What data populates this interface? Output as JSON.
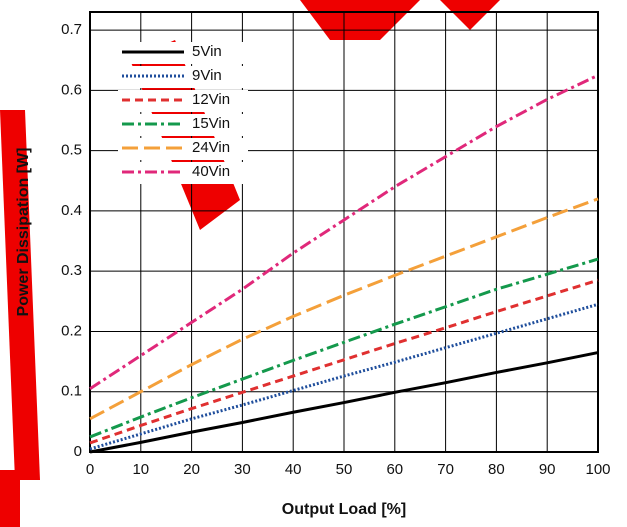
{
  "chart_data": {
    "type": "line",
    "xlabel": "Output Load [%]",
    "ylabel": "Power Dissipation [W]",
    "x": [
      0,
      10,
      20,
      30,
      40,
      50,
      60,
      70,
      80,
      90,
      100
    ],
    "series": [
      {
        "name": "5Vin",
        "color": "#000000",
        "dash": "solid",
        "values": [
          0,
          0.016,
          0.033,
          0.049,
          0.066,
          0.082,
          0.099,
          0.115,
          0.132,
          0.148,
          0.165
        ]
      },
      {
        "name": "9Vin",
        "color": "#1f4e9c",
        "dash": "dotted",
        "values": [
          0.005,
          0.03,
          0.055,
          0.078,
          0.102,
          0.126,
          0.149,
          0.173,
          0.197,
          0.221,
          0.245
        ]
      },
      {
        "name": "12Vin",
        "color": "#e03030",
        "dash": "dashed",
        "values": [
          0.015,
          0.044,
          0.072,
          0.099,
          0.126,
          0.153,
          0.18,
          0.206,
          0.233,
          0.259,
          0.285
        ]
      },
      {
        "name": "15Vin",
        "color": "#14994c",
        "dash": "dashdot",
        "values": [
          0.025,
          0.058,
          0.09,
          0.121,
          0.152,
          0.182,
          0.212,
          0.241,
          0.27,
          0.295,
          0.32
        ]
      },
      {
        "name": "24Vin",
        "color": "#f4a03a",
        "dash": "longdash",
        "values": [
          0.055,
          0.1,
          0.145,
          0.187,
          0.225,
          0.26,
          0.293,
          0.325,
          0.357,
          0.389,
          0.42
        ]
      },
      {
        "name": "40Vin",
        "color": "#e0287a",
        "dash": "dashdot",
        "values": [
          0.105,
          0.16,
          0.215,
          0.27,
          0.33,
          0.385,
          0.44,
          0.49,
          0.54,
          0.585,
          0.625
        ]
      }
    ],
    "xlim": [
      0,
      100
    ],
    "xticks": [
      0,
      10,
      20,
      30,
      40,
      50,
      60,
      70,
      80,
      90,
      100
    ],
    "ylim": [
      0,
      0.73
    ],
    "yticks": [
      0,
      0.1,
      0.2,
      0.3,
      0.4,
      0.5,
      0.6,
      0.7
    ],
    "grid": true,
    "legend": "upper left"
  }
}
